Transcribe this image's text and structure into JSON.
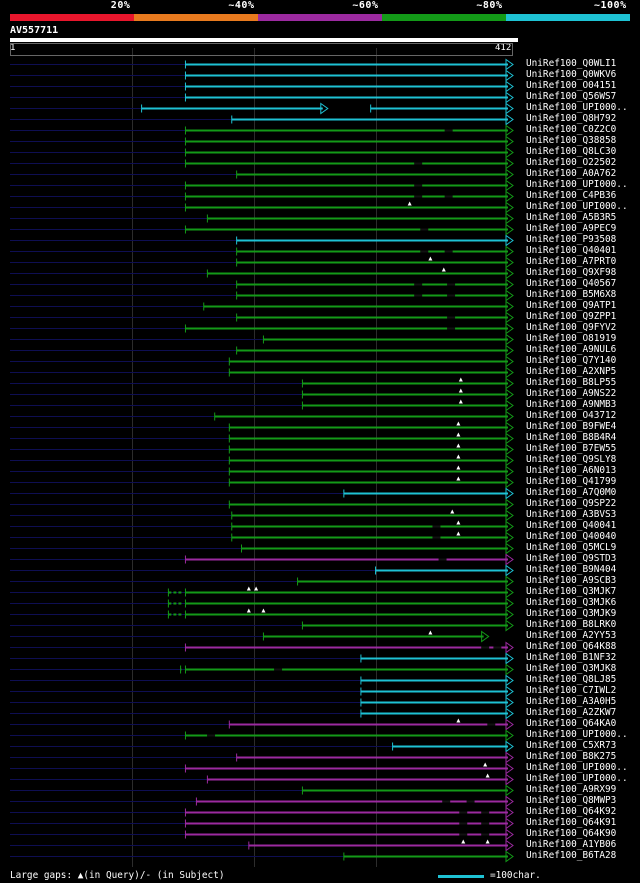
{
  "legend": {
    "segments": [
      {
        "label": "20%",
        "color": "#e8162c"
      },
      {
        "label": "~40%",
        "color": "#e87a1e"
      },
      {
        "label": "~60%",
        "color": "#9c2aa0"
      },
      {
        "label": "~80%",
        "color": "#139a18"
      },
      {
        "label": "~100%",
        "color": "#1ec2d4"
      }
    ]
  },
  "query": {
    "id": "AV557711",
    "start": "1",
    "end": "412",
    "length": 412
  },
  "colors": {
    "cyan": "#1ec2d4",
    "green": "#139a18",
    "purple": "#9c2aa0",
    "navy": "#0e0e52",
    "grid": "#2c2c2c"
  },
  "hits": [
    {
      "name": "UniRef100_Q0WLI1",
      "color": "cyan",
      "qs": 144,
      "qe": 412,
      "ins": [],
      "dels": []
    },
    {
      "name": "UniRef100_Q0WKV6",
      "color": "cyan",
      "qs": 144,
      "qe": 412,
      "ins": [],
      "dels": []
    },
    {
      "name": "UniRef100_O04151",
      "color": "cyan",
      "qs": 144,
      "qe": 412,
      "ins": [],
      "dels": []
    },
    {
      "name": "UniRef100_Q56WS7",
      "color": "cyan",
      "qs": 144,
      "qe": 412,
      "ins": [],
      "dels": []
    },
    {
      "name": "UniRef100_UPI000..",
      "color": "cyan",
      "qs": 108,
      "qe": 260,
      "ins": [],
      "dels": [],
      "ext": [
        [
          296,
          412
        ]
      ]
    },
    {
      "name": "UniRef100_Q8H792",
      "color": "cyan",
      "qs": 182,
      "qe": 412,
      "ins": [],
      "dels": []
    },
    {
      "name": "UniRef100_C0Z2C0",
      "color": "green",
      "qs": 144,
      "qe": 412,
      "ins": [],
      "dels": [
        360
      ]
    },
    {
      "name": "UniRef100_Q38858",
      "color": "green",
      "qs": 144,
      "qe": 412,
      "ins": [],
      "dels": []
    },
    {
      "name": "UniRef100_Q8LC30",
      "color": "green",
      "qs": 144,
      "qe": 412,
      "ins": [],
      "dels": []
    },
    {
      "name": "UniRef100_O22502",
      "color": "green",
      "qs": 144,
      "qe": 412,
      "ins": [],
      "dels": [
        335
      ]
    },
    {
      "name": "UniRef100_A0A762",
      "color": "green",
      "qs": 186,
      "qe": 412,
      "ins": [],
      "dels": []
    },
    {
      "name": "UniRef100_UPI000..",
      "color": "green",
      "qs": 144,
      "qe": 412,
      "ins": [],
      "dels": [
        335
      ]
    },
    {
      "name": "UniRef100_C4PB36",
      "color": "green",
      "qs": 144,
      "qe": 412,
      "ins": [],
      "dels": [
        335,
        360
      ]
    },
    {
      "name": "UniRef100_UPI000..",
      "color": "green",
      "qs": 144,
      "qe": 412,
      "ins": [
        328
      ],
      "dels": []
    },
    {
      "name": "UniRef100_A5B3R5",
      "color": "green",
      "qs": 162,
      "qe": 412,
      "ins": [],
      "dels": []
    },
    {
      "name": "UniRef100_A9PEC9",
      "color": "green",
      "qs": 144,
      "qe": 412,
      "ins": [],
      "dels": [
        340
      ]
    },
    {
      "name": "UniRef100_P93508",
      "color": "cyan",
      "qs": 186,
      "qe": 412,
      "ins": [],
      "dels": []
    },
    {
      "name": "UniRef100_Q40401",
      "color": "green",
      "qs": 186,
      "qe": 412,
      "ins": [],
      "dels": [
        340,
        360
      ]
    },
    {
      "name": "UniRef100_A7PRT0",
      "color": "green",
      "qs": 186,
      "qe": 412,
      "ins": [
        345
      ],
      "dels": []
    },
    {
      "name": "UniRef100_Q9XF98",
      "color": "green",
      "qs": 162,
      "qe": 412,
      "ins": [
        356
      ],
      "dels": []
    },
    {
      "name": "UniRef100_Q40567",
      "color": "green",
      "qs": 186,
      "qe": 412,
      "ins": [],
      "dels": [
        335,
        362
      ]
    },
    {
      "name": "UniRef100_B5M6X8",
      "color": "green",
      "qs": 186,
      "qe": 412,
      "ins": [],
      "dels": [
        335,
        362
      ]
    },
    {
      "name": "UniRef100_Q9ATP1",
      "color": "green",
      "qs": 159,
      "qe": 412,
      "ins": [],
      "dels": []
    },
    {
      "name": "UniRef100_Q9ZPP1",
      "color": "green",
      "qs": 186,
      "qe": 412,
      "ins": [],
      "dels": [
        362
      ]
    },
    {
      "name": "UniRef100_Q9FYV2",
      "color": "green",
      "qs": 144,
      "qe": 412,
      "ins": [],
      "dels": [
        362
      ]
    },
    {
      "name": "UniRef100_O81919",
      "color": "green",
      "qs": 208,
      "qe": 412,
      "ins": [],
      "dels": []
    },
    {
      "name": "UniRef100_A9NUL6",
      "color": "green",
      "qs": 186,
      "qe": 412,
      "ins": [],
      "dels": []
    },
    {
      "name": "UniRef100_Q7Y140",
      "color": "green",
      "qs": 180,
      "qe": 412,
      "ins": [],
      "dels": []
    },
    {
      "name": "UniRef100_A2XNP5",
      "color": "green",
      "qs": 180,
      "qe": 412,
      "ins": [],
      "dels": []
    },
    {
      "name": "UniRef100_B8LP55",
      "color": "green",
      "qs": 240,
      "qe": 412,
      "ins": [
        370
      ],
      "dels": []
    },
    {
      "name": "UniRef100_A9NS22",
      "color": "green",
      "qs": 240,
      "qe": 412,
      "ins": [
        370
      ],
      "dels": []
    },
    {
      "name": "UniRef100_A9NMB3",
      "color": "green",
      "qs": 240,
      "qe": 412,
      "ins": [
        370
      ],
      "dels": []
    },
    {
      "name": "UniRef100_O43712",
      "color": "green",
      "qs": 168,
      "qe": 412,
      "ins": [],
      "dels": []
    },
    {
      "name": "UniRef100_B9FWE4",
      "color": "green",
      "qs": 180,
      "qe": 412,
      "ins": [
        368
      ],
      "dels": []
    },
    {
      "name": "UniRef100_B8B4R4",
      "color": "green",
      "qs": 180,
      "qe": 412,
      "ins": [
        368
      ],
      "dels": []
    },
    {
      "name": "UniRef100_B7EW55",
      "color": "green",
      "qs": 180,
      "qe": 412,
      "ins": [
        368
      ],
      "dels": []
    },
    {
      "name": "UniRef100_Q9SLY8",
      "color": "green",
      "qs": 180,
      "qe": 412,
      "ins": [
        368
      ],
      "dels": []
    },
    {
      "name": "UniRef100_A6N013",
      "color": "green",
      "qs": 180,
      "qe": 412,
      "ins": [
        368
      ],
      "dels": []
    },
    {
      "name": "UniRef100_Q41799",
      "color": "green",
      "qs": 180,
      "qe": 412,
      "ins": [
        368
      ],
      "dels": []
    },
    {
      "name": "UniRef100_A7Q0M0",
      "color": "cyan",
      "qs": 274,
      "qe": 412,
      "ins": [],
      "dels": []
    },
    {
      "name": "UniRef100_Q9SP22",
      "color": "green",
      "qs": 180,
      "qe": 412,
      "ins": [],
      "dels": []
    },
    {
      "name": "UniRef100_A3BVS3",
      "color": "green",
      "qs": 182,
      "qe": 412,
      "ins": [
        363
      ],
      "dels": []
    },
    {
      "name": "UniRef100_Q40041",
      "color": "green",
      "qs": 182,
      "qe": 412,
      "ins": [
        368
      ],
      "dels": [
        350
      ]
    },
    {
      "name": "UniRef100_Q40040",
      "color": "green",
      "qs": 182,
      "qe": 412,
      "ins": [
        368
      ],
      "dels": [
        350
      ]
    },
    {
      "name": "UniRef100_Q5MCL9",
      "color": "green",
      "qs": 190,
      "qe": 412,
      "ins": [],
      "dels": []
    },
    {
      "name": "UniRef100_Q9STD3",
      "color": "purple",
      "qs": 144,
      "qe": 412,
      "ins": [],
      "dels": [
        355
      ]
    },
    {
      "name": "UniRef100_B9N404",
      "color": "cyan",
      "qs": 300,
      "qe": 412,
      "ins": [],
      "dels": []
    },
    {
      "name": "UniRef100_A9SCB3",
      "color": "green",
      "qs": 236,
      "qe": 412,
      "ins": [],
      "dels": []
    },
    {
      "name": "UniRef100_Q3MJK7",
      "color": "green",
      "qs": 144,
      "qe": 412,
      "ins": [
        196,
        202
      ],
      "dels": [],
      "ext": [
        [
          130,
          144
        ]
      ]
    },
    {
      "name": "UniRef100_Q3MJK6",
      "color": "green",
      "qs": 144,
      "qe": 412,
      "ins": [],
      "dels": [],
      "ext": [
        [
          130,
          144
        ]
      ]
    },
    {
      "name": "UniRef100_Q3MJK9",
      "color": "green",
      "qs": 144,
      "qe": 412,
      "ins": [
        196,
        208
      ],
      "dels": [],
      "ext": [
        [
          130,
          144
        ]
      ]
    },
    {
      "name": "UniRef100_B8LRK0",
      "color": "green",
      "qs": 240,
      "qe": 412,
      "ins": [],
      "dels": []
    },
    {
      "name": "UniRef100_A2YY53",
      "color": "green",
      "qs": 208,
      "qe": 392,
      "ins": [
        345
      ],
      "dels": []
    },
    {
      "name": "UniRef100_Q64K88",
      "color": "purple",
      "qs": 144,
      "qe": 412,
      "ins": [],
      "dels": [
        390,
        400
      ]
    },
    {
      "name": "UniRef100_B1NF32",
      "color": "cyan",
      "qs": 288,
      "qe": 412,
      "ins": [],
      "dels": []
    },
    {
      "name": "UniRef100_Q3MJK8",
      "color": "green",
      "qs": 144,
      "qe": 412,
      "ins": [],
      "dels": [
        220
      ],
      "ext": [
        [
          140,
          144
        ]
      ]
    },
    {
      "name": "UniRef100_Q8LJ85",
      "color": "cyan",
      "qs": 288,
      "qe": 412,
      "ins": [],
      "dels": []
    },
    {
      "name": "UniRef100_C7IWL2",
      "color": "cyan",
      "qs": 288,
      "qe": 412,
      "ins": [],
      "dels": []
    },
    {
      "name": "UniRef100_A3A0H5",
      "color": "cyan",
      "qs": 288,
      "qe": 412,
      "ins": [],
      "dels": []
    },
    {
      "name": "UniRef100_A2ZKW7",
      "color": "cyan",
      "qs": 288,
      "qe": 412,
      "ins": [],
      "dels": []
    },
    {
      "name": "UniRef100_Q64KA0",
      "color": "purple",
      "qs": 180,
      "qe": 412,
      "ins": [
        368
      ],
      "dels": [
        395
      ]
    },
    {
      "name": "UniRef100_UPI000..",
      "color": "green",
      "qs": 144,
      "qe": 412,
      "ins": [],
      "dels": [
        165
      ]
    },
    {
      "name": "UniRef100_C5XR73",
      "color": "cyan",
      "qs": 314,
      "qe": 412,
      "ins": [],
      "dels": []
    },
    {
      "name": "UniRef100_B8K275",
      "color": "purple",
      "qs": 186,
      "qe": 412,
      "ins": [],
      "dels": []
    },
    {
      "name": "UniRef100_UPI000..",
      "color": "purple",
      "qs": 144,
      "qe": 412,
      "ins": [
        390
      ],
      "dels": []
    },
    {
      "name": "UniRef100_UPI000..",
      "color": "purple",
      "qs": 162,
      "qe": 412,
      "ins": [
        392
      ],
      "dels": []
    },
    {
      "name": "UniRef100_A9RX99",
      "color": "green",
      "qs": 240,
      "qe": 412,
      "ins": [],
      "dels": []
    },
    {
      "name": "UniRef100_Q8MWP3",
      "color": "purple",
      "qs": 153,
      "qe": 412,
      "ins": [],
      "dels": [
        358,
        378
      ]
    },
    {
      "name": "UniRef100_Q64K92",
      "color": "purple",
      "qs": 144,
      "qe": 412,
      "ins": [],
      "dels": [
        372,
        390
      ]
    },
    {
      "name": "UniRef100_Q64K91",
      "color": "purple",
      "qs": 144,
      "qe": 412,
      "ins": [],
      "dels": [
        372,
        390
      ]
    },
    {
      "name": "UniRef100_Q64K90",
      "color": "purple",
      "qs": 144,
      "qe": 412,
      "ins": [],
      "dels": [
        372,
        390
      ]
    },
    {
      "name": "UniRef100_A1YB06",
      "color": "purple",
      "qs": 196,
      "qe": 412,
      "ins": [
        372,
        392
      ],
      "dels": []
    },
    {
      "name": "UniRef100_B6TA28",
      "color": "green",
      "qs": 274,
      "qe": 412,
      "ins": [],
      "dels": []
    }
  ],
  "footer": {
    "gaps_text": "Large gaps: ▲(in Query)/- (in Subject)",
    "scale_text": "=100char."
  }
}
